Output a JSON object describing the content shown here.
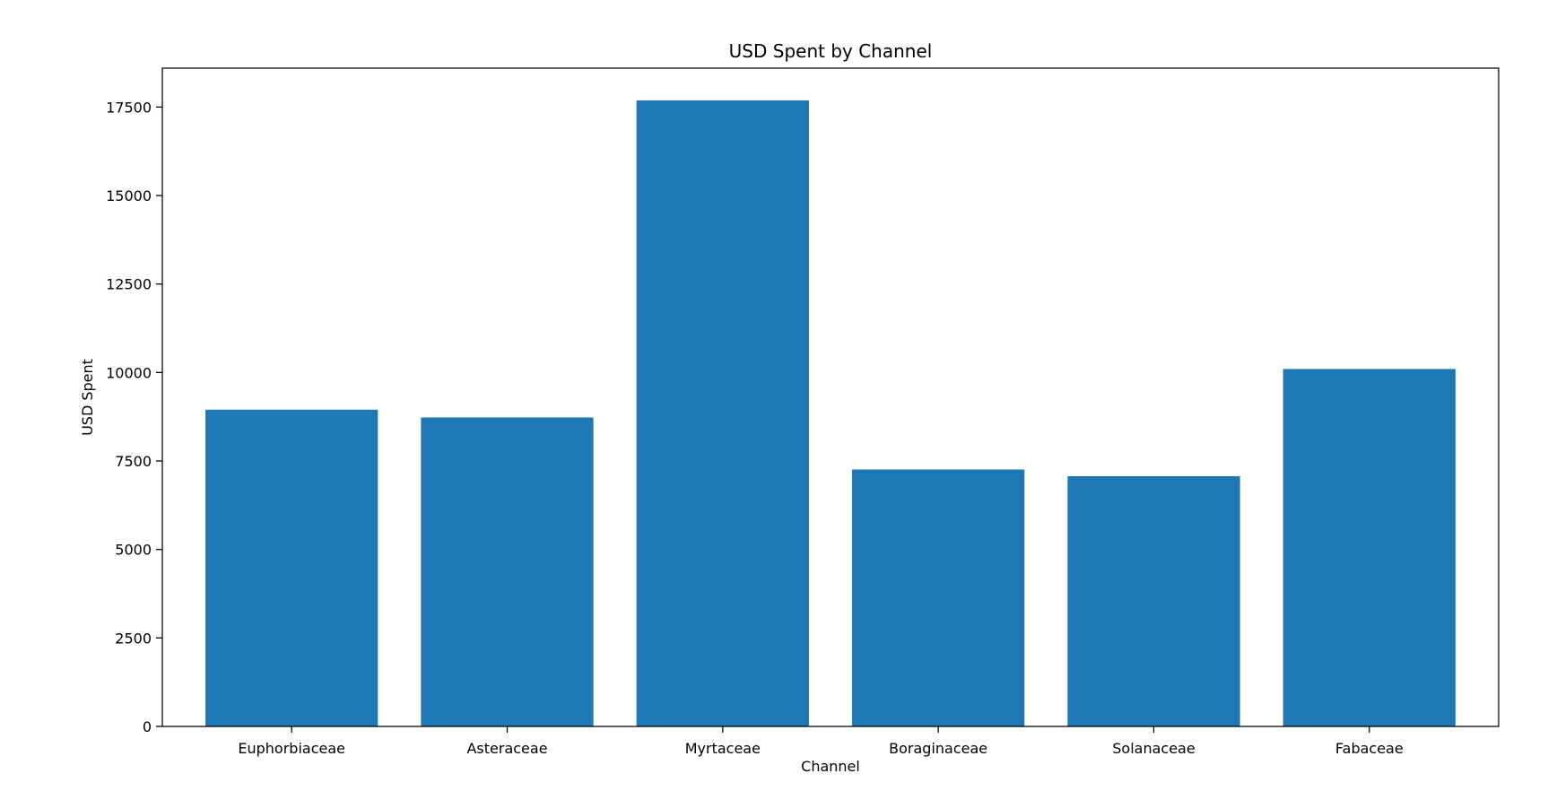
{
  "chart_data": {
    "type": "bar",
    "title": "USD Spent by Channel",
    "xlabel": "Channel",
    "ylabel": "USD Spent",
    "categories": [
      "Euphorbiaceae",
      "Asteraceae",
      "Myrtaceae",
      "Boraginaceae",
      "Solanaceae",
      "Fabaceae"
    ],
    "values": [
      8950,
      8730,
      17690,
      7260,
      7070,
      10100
    ],
    "ylim": [
      0,
      18600
    ],
    "yticks": [
      0,
      2500,
      5000,
      7500,
      10000,
      12500,
      15000,
      17500
    ],
    "bar_color": "#1f77b4",
    "grid": false,
    "legend": "none"
  }
}
